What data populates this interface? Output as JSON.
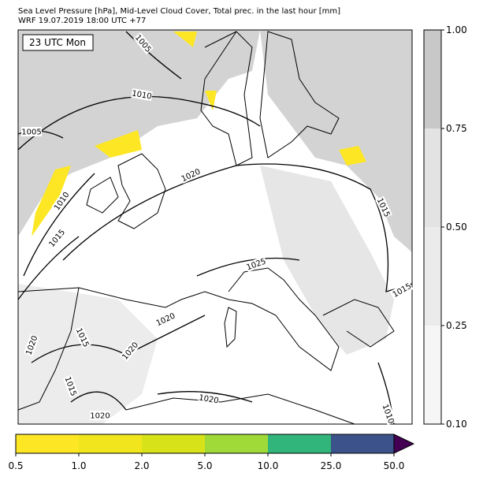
{
  "header": {
    "title": "Sea Level Pressure [hPa], Mid-Level Cloud Cover, Total prec. in the last hour [mm]",
    "subtitle": "WRF 19.07.2019 18:00 UTC +77"
  },
  "time_label": "23 UTC Mon",
  "isobar_labels": [
    1005,
    1010,
    1005,
    1020,
    1010,
    1015,
    1025,
    1015,
    1015,
    1020,
    1015,
    1020,
    1020,
    1015,
    1020,
    1020,
    1010
  ],
  "cloud_colorbar": {
    "ticks": [
      {
        "value": 0.1,
        "label": "0.10"
      },
      {
        "value": 0.25,
        "label": "0.25"
      },
      {
        "value": 0.5,
        "label": "0.50"
      },
      {
        "value": 0.75,
        "label": "0.75"
      },
      {
        "value": 1.0,
        "label": "1.00"
      }
    ],
    "colors": [
      "#f6f6f6",
      "#ebebeb",
      "#e3e3e3",
      "#c8c8c8"
    ]
  },
  "precip_colorbar": {
    "ticks": [
      0.5,
      {
        "value": 1.0,
        "label": "1.0"
      },
      {
        "value": 2.0,
        "label": "2.0"
      },
      {
        "value": 5.0,
        "label": "5.0"
      },
      {
        "value": 10.0,
        "label": "10.0"
      },
      {
        "value": 25.0,
        "label": "25.0"
      },
      {
        "value": 50.0,
        "label": "50.0"
      }
    ],
    "colors": [
      "#fde725",
      "#f1e51d",
      "#d8e219",
      "#a0da39",
      "#31b57b",
      "#3b528b"
    ],
    "extend_color": "#440154"
  }
}
